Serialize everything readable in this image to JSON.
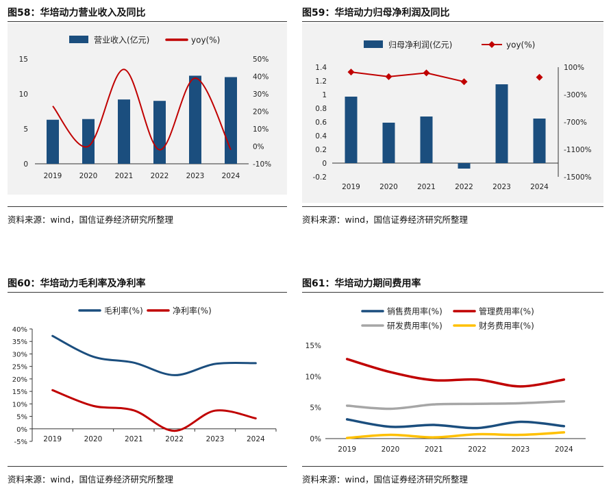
{
  "colors": {
    "navy": "#1b4e7e",
    "red": "#c00000",
    "gray": "#a6a6a6",
    "gold": "#ffc000",
    "bar_bg": "#f2f2f2"
  },
  "source_text": "资料来源：wind，国信证券经济研究所整理",
  "chart_data": [
    {
      "id": "fig58",
      "title": "图58：华培动力营业收入及同比",
      "type": "bar+line",
      "categories": [
        "2019",
        "2020",
        "2021",
        "2022",
        "2023",
        "2024"
      ],
      "series": [
        {
          "name": "营业收入(亿元)",
          "kind": "bar",
          "axis": "left",
          "values": [
            6.3,
            6.4,
            9.2,
            9.0,
            12.6,
            12.4
          ]
        },
        {
          "name": "yoy(%)",
          "kind": "line",
          "axis": "right",
          "values": [
            23,
            0,
            44,
            -2,
            39,
            -2
          ]
        }
      ],
      "left_axis": {
        "min": 0,
        "max": 15,
        "ticks": [
          "0",
          "5",
          "10",
          "15"
        ]
      },
      "right_axis": {
        "min": -10,
        "max": 50,
        "ticks": [
          "-10%",
          "0%",
          "10%",
          "20%",
          "30%",
          "40%",
          "50%"
        ]
      }
    },
    {
      "id": "fig59",
      "title": "图59：华培动力归母净利润及同比",
      "type": "bar+line",
      "categories": [
        "2019",
        "2020",
        "2021",
        "2022",
        "2023",
        "2024"
      ],
      "series": [
        {
          "name": "归母净利润(亿元)",
          "kind": "bar",
          "axis": "left",
          "values": [
            0.97,
            0.59,
            0.68,
            -0.08,
            1.15,
            0.65
          ]
        },
        {
          "name": "yoy(%)",
          "kind": "line",
          "axis": "right",
          "values": [
            29,
            -39,
            16,
            -112,
            null,
            -47
          ]
        }
      ],
      "left_axis": {
        "min": -0.2,
        "max": 1.4,
        "ticks": [
          "-0.2",
          "0",
          "0.2",
          "0.4",
          "0.6",
          "0.8",
          "1",
          "1.2",
          "1.4"
        ]
      },
      "right_axis": {
        "min": -1500,
        "max": 100,
        "ticks": [
          "-1500%",
          "-1100%",
          "-700%",
          "-300%",
          "100%"
        ]
      }
    },
    {
      "id": "fig60",
      "title": "图60：华培动力毛利率及净利率",
      "type": "line",
      "categories": [
        "2019",
        "2020",
        "2021",
        "2022",
        "2023",
        "2024"
      ],
      "series": [
        {
          "name": "毛利率(%)",
          "values": [
            37.2,
            28.9,
            26.5,
            21.5,
            26.0,
            26.3
          ]
        },
        {
          "name": "净利率(%)",
          "values": [
            15.5,
            9.2,
            7.4,
            -0.8,
            7.3,
            4.2
          ]
        }
      ],
      "y_axis": {
        "min": -5,
        "max": 40,
        "ticks": [
          "-5%",
          "0%",
          "5%",
          "10%",
          "15%",
          "20%",
          "25%",
          "30%",
          "35%",
          "40%"
        ]
      }
    },
    {
      "id": "fig61",
      "title": "图61：华培动力期间费用率",
      "type": "line",
      "categories": [
        "2019",
        "2020",
        "2021",
        "2022",
        "2023",
        "2024"
      ],
      "series": [
        {
          "name": "销售费用率(%)",
          "values": [
            3.1,
            1.9,
            2.2,
            1.7,
            2.7,
            2.0
          ]
        },
        {
          "name": "管理费用率(%)",
          "values": [
            12.8,
            10.7,
            9.4,
            9.5,
            8.4,
            9.5
          ]
        },
        {
          "name": "研发费用率(%)",
          "values": [
            5.3,
            4.8,
            5.5,
            5.6,
            5.7,
            6.0
          ]
        },
        {
          "name": "财务费用率(%)",
          "values": [
            0.1,
            0.6,
            0.2,
            0.7,
            0.6,
            1.0
          ]
        }
      ],
      "y_axis": {
        "min": 0,
        "max": 15,
        "ticks": [
          "0%",
          "5%",
          "10%",
          "15%"
        ]
      }
    }
  ]
}
